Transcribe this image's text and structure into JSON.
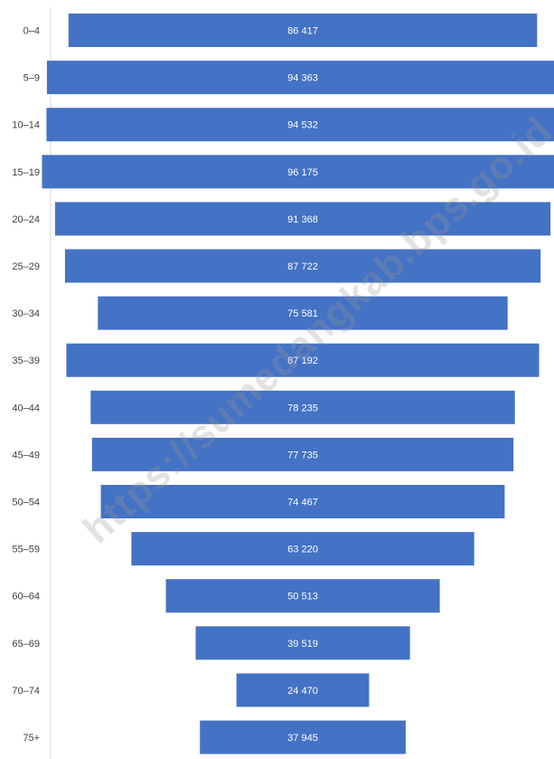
{
  "chart_data": {
    "type": "bar",
    "orientation": "horizontal",
    "alignment": "centered",
    "categories": [
      "0–4",
      "5–9",
      "10–14",
      "15–19",
      "20–24",
      "25–29",
      "30–34",
      "35–39",
      "40–44",
      "45–49",
      "50–54",
      "55–59",
      "60–64",
      "65–69",
      "70–74",
      "75+"
    ],
    "values": [
      86417,
      94363,
      94532,
      96175,
      91368,
      87722,
      75581,
      87192,
      78235,
      77735,
      74467,
      63220,
      50513,
      39519,
      24470,
      37945
    ],
    "value_labels": [
      "86 417",
      "94 363",
      "94 532",
      "96 175",
      "91 368",
      "87 722",
      "75 581",
      "87 192",
      "78 235",
      "77 735",
      "74 467",
      "63 220",
      "50 513",
      "39 519",
      "24 470",
      "37 945"
    ],
    "title": "",
    "xlabel": "",
    "ylabel": "",
    "grid": false,
    "legend": "none",
    "colors": {
      "bar": "#4472C4",
      "axis": "#d9d9d9",
      "label": "#404040"
    }
  },
  "watermark": {
    "text": "https://sumedangkab.bps.go.id"
  }
}
